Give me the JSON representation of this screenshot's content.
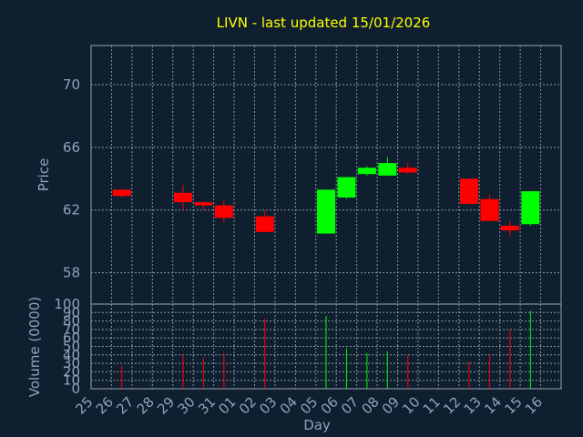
{
  "title": "LIVN - last updated 15/01/2026",
  "chart_data": [
    {
      "type": "candlestick",
      "ylabel": "Price",
      "ylim": [
        56,
        72.5
      ],
      "yticks": [
        58,
        62,
        66,
        70
      ],
      "grid": true,
      "colors": {
        "up": "#00ff00",
        "down": "#ff0000"
      },
      "candles": [
        {
          "day": "26",
          "open": 63.3,
          "close": 62.9,
          "high": 63.3,
          "low": 62.8
        },
        {
          "day": "29",
          "open": 63.1,
          "close": 62.5,
          "high": 63.6,
          "low": 62.0
        },
        {
          "day": "30",
          "open": 62.5,
          "close": 62.3,
          "high": 62.5,
          "low": 62.0
        },
        {
          "day": "31",
          "open": 62.3,
          "close": 61.5,
          "high": 62.6,
          "low": 61.2
        },
        {
          "day": "02",
          "open": 61.6,
          "close": 60.6,
          "high": 62.0,
          "low": 60.6
        },
        {
          "day": "05",
          "open": 60.5,
          "close": 63.3,
          "high": 63.3,
          "low": 60.5
        },
        {
          "day": "06",
          "open": 62.8,
          "close": 64.1,
          "high": 64.1,
          "low": 62.7
        },
        {
          "day": "07",
          "open": 64.3,
          "close": 64.7,
          "high": 64.8,
          "low": 64.2
        },
        {
          "day": "08",
          "open": 64.2,
          "close": 65.0,
          "high": 65.4,
          "low": 64.2
        },
        {
          "day": "09",
          "open": 64.7,
          "close": 64.4,
          "high": 65.0,
          "low": 64.3
        },
        {
          "day": "12",
          "open": 64.0,
          "close": 62.4,
          "high": 64.0,
          "low": 62.4
        },
        {
          "day": "13",
          "open": 62.7,
          "close": 61.3,
          "high": 63.0,
          "low": 61.3
        },
        {
          "day": "14",
          "open": 61.0,
          "close": 60.7,
          "high": 61.3,
          "low": 60.3
        },
        {
          "day": "15",
          "open": 61.1,
          "close": 63.2,
          "high": 63.2,
          "low": 61.0
        }
      ]
    },
    {
      "type": "bar",
      "ylabel": "Volume (0000)",
      "xlabel": "Day",
      "ylim": [
        0,
        100
      ],
      "yticks": [
        0,
        10,
        20,
        30,
        40,
        50,
        60,
        70,
        80,
        90,
        100
      ],
      "grid": true,
      "categories": [
        "25",
        "26",
        "27",
        "28",
        "29",
        "30",
        "31",
        "01",
        "02",
        "03",
        "04",
        "05",
        "06",
        "07",
        "08",
        "09",
        "10",
        "11",
        "12",
        "13",
        "14",
        "15",
        "16"
      ],
      "volumes": [
        {
          "day": "26",
          "value": 27,
          "direction": "down"
        },
        {
          "day": "29",
          "value": 40,
          "direction": "down"
        },
        {
          "day": "30",
          "value": 37,
          "direction": "down"
        },
        {
          "day": "31",
          "value": 42,
          "direction": "down"
        },
        {
          "day": "02",
          "value": 83,
          "direction": "down"
        },
        {
          "day": "05",
          "value": 86,
          "direction": "up"
        },
        {
          "day": "06",
          "value": 48,
          "direction": "up"
        },
        {
          "day": "07",
          "value": 42,
          "direction": "up"
        },
        {
          "day": "08",
          "value": 44,
          "direction": "up"
        },
        {
          "day": "09",
          "value": 40,
          "direction": "down"
        },
        {
          "day": "12",
          "value": 32,
          "direction": "down"
        },
        {
          "day": "13",
          "value": 40,
          "direction": "down"
        },
        {
          "day": "14",
          "value": 70,
          "direction": "down"
        },
        {
          "day": "15",
          "value": 92,
          "direction": "up"
        }
      ]
    }
  ]
}
